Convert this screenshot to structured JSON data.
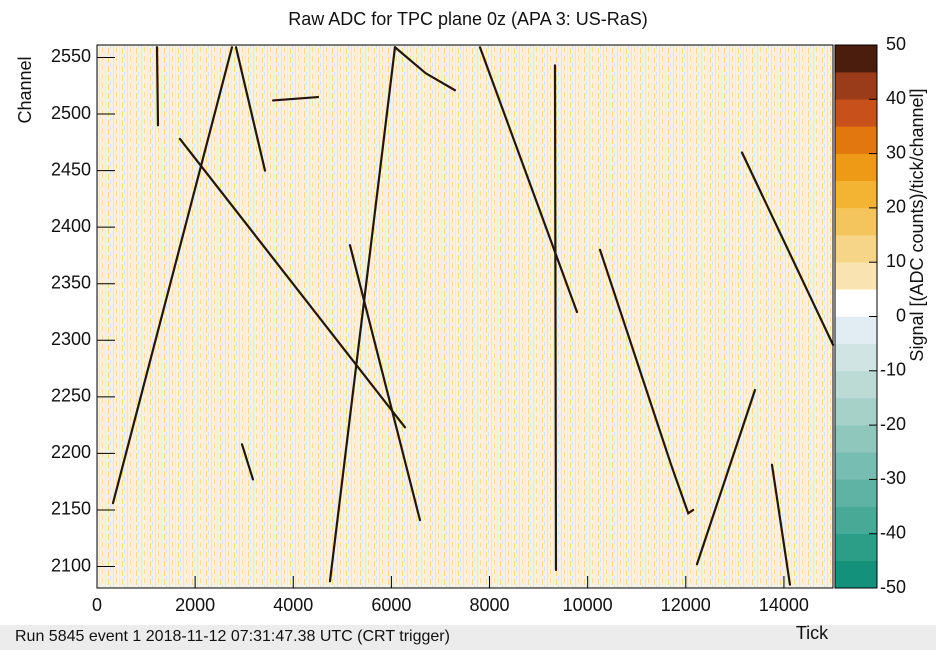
{
  "chart_data": {
    "type": "event_display",
    "title": "Raw ADC for TPC plane 0z (APA 3: US-RaS)",
    "x_label": "Tick",
    "y_label": "Channel",
    "z_label": "Signal [(ADC counts)/tick/channel]",
    "footer": "Run 5845 event 1 2018-11-12 07:31:47.38 UTC (CRT trigger)",
    "xlim": [
      0,
      15000
    ],
    "xticks": [
      0,
      2000,
      4000,
      6000,
      8000,
      10000,
      12000,
      14000
    ],
    "ylim": [
      2081,
      2561
    ],
    "yticks": [
      2100,
      2150,
      2200,
      2250,
      2300,
      2350,
      2400,
      2450,
      2500,
      2550
    ],
    "zlim": [
      -50,
      50
    ],
    "zticks": [
      -50,
      -40,
      -30,
      -20,
      -10,
      0,
      10,
      20,
      30,
      40,
      50
    ],
    "colorscale": [
      "#13917a",
      "#2c9e88",
      "#47a996",
      "#5fb3a4",
      "#78bdb1",
      "#8fc7bd",
      "#a6d1c9",
      "#bcdbd5",
      "#d0e4e3",
      "#e2edf3",
      "#ffffff",
      "#f9e3b0",
      "#f6d589",
      "#f5c55d",
      "#f3b333",
      "#ef9a16",
      "#e2760f",
      "#c8501a",
      "#9a3b1a",
      "#4a1d0c"
    ],
    "track_color": "#24160a",
    "tracks": [
      {
        "x": [
          326,
          2751
        ],
        "y": [
          2156,
          2559
        ]
      },
      {
        "x": [
          1691,
          6277
        ],
        "y": [
          2478,
          2223
        ]
      },
      {
        "x": [
          4748,
          6073
        ],
        "y": [
          2087,
          2559
        ]
      },
      {
        "x": [
          5156,
          6582
        ],
        "y": [
          2384,
          2141
        ]
      },
      {
        "x": [
          6073,
          6700,
          7296
        ],
        "y": [
          2559,
          2536,
          2521
        ]
      },
      {
        "x": [
          7805,
          9782
        ],
        "y": [
          2559,
          2325
        ]
      },
      {
        "x": [
          9334,
          9354
        ],
        "y": [
          2543,
          2097
        ]
      },
      {
        "x": [
          10251,
          11700,
          12050,
          12150
        ],
        "y": [
          2380,
          2190,
          2147,
          2150
        ]
      },
      {
        "x": [
          12228,
          13410
        ],
        "y": [
          2102,
          2256
        ]
      },
      {
        "x": [
          13145,
          15000
        ],
        "y": [
          2466,
          2296
        ]
      },
      {
        "x": [
          2833,
          3424
        ],
        "y": [
          2559,
          2450
        ]
      },
      {
        "x": [
          2955,
          3179
        ],
        "y": [
          2208,
          2177
        ]
      },
      {
        "x": [
          13756,
          14123
        ],
        "y": [
          2190,
          2084
        ]
      },
      {
        "x": [
          1223,
          1243
        ],
        "y": [
          2559,
          2490
        ]
      },
      {
        "x": [
          3588,
          4504
        ],
        "y": [
          2512,
          2515
        ]
      }
    ]
  }
}
